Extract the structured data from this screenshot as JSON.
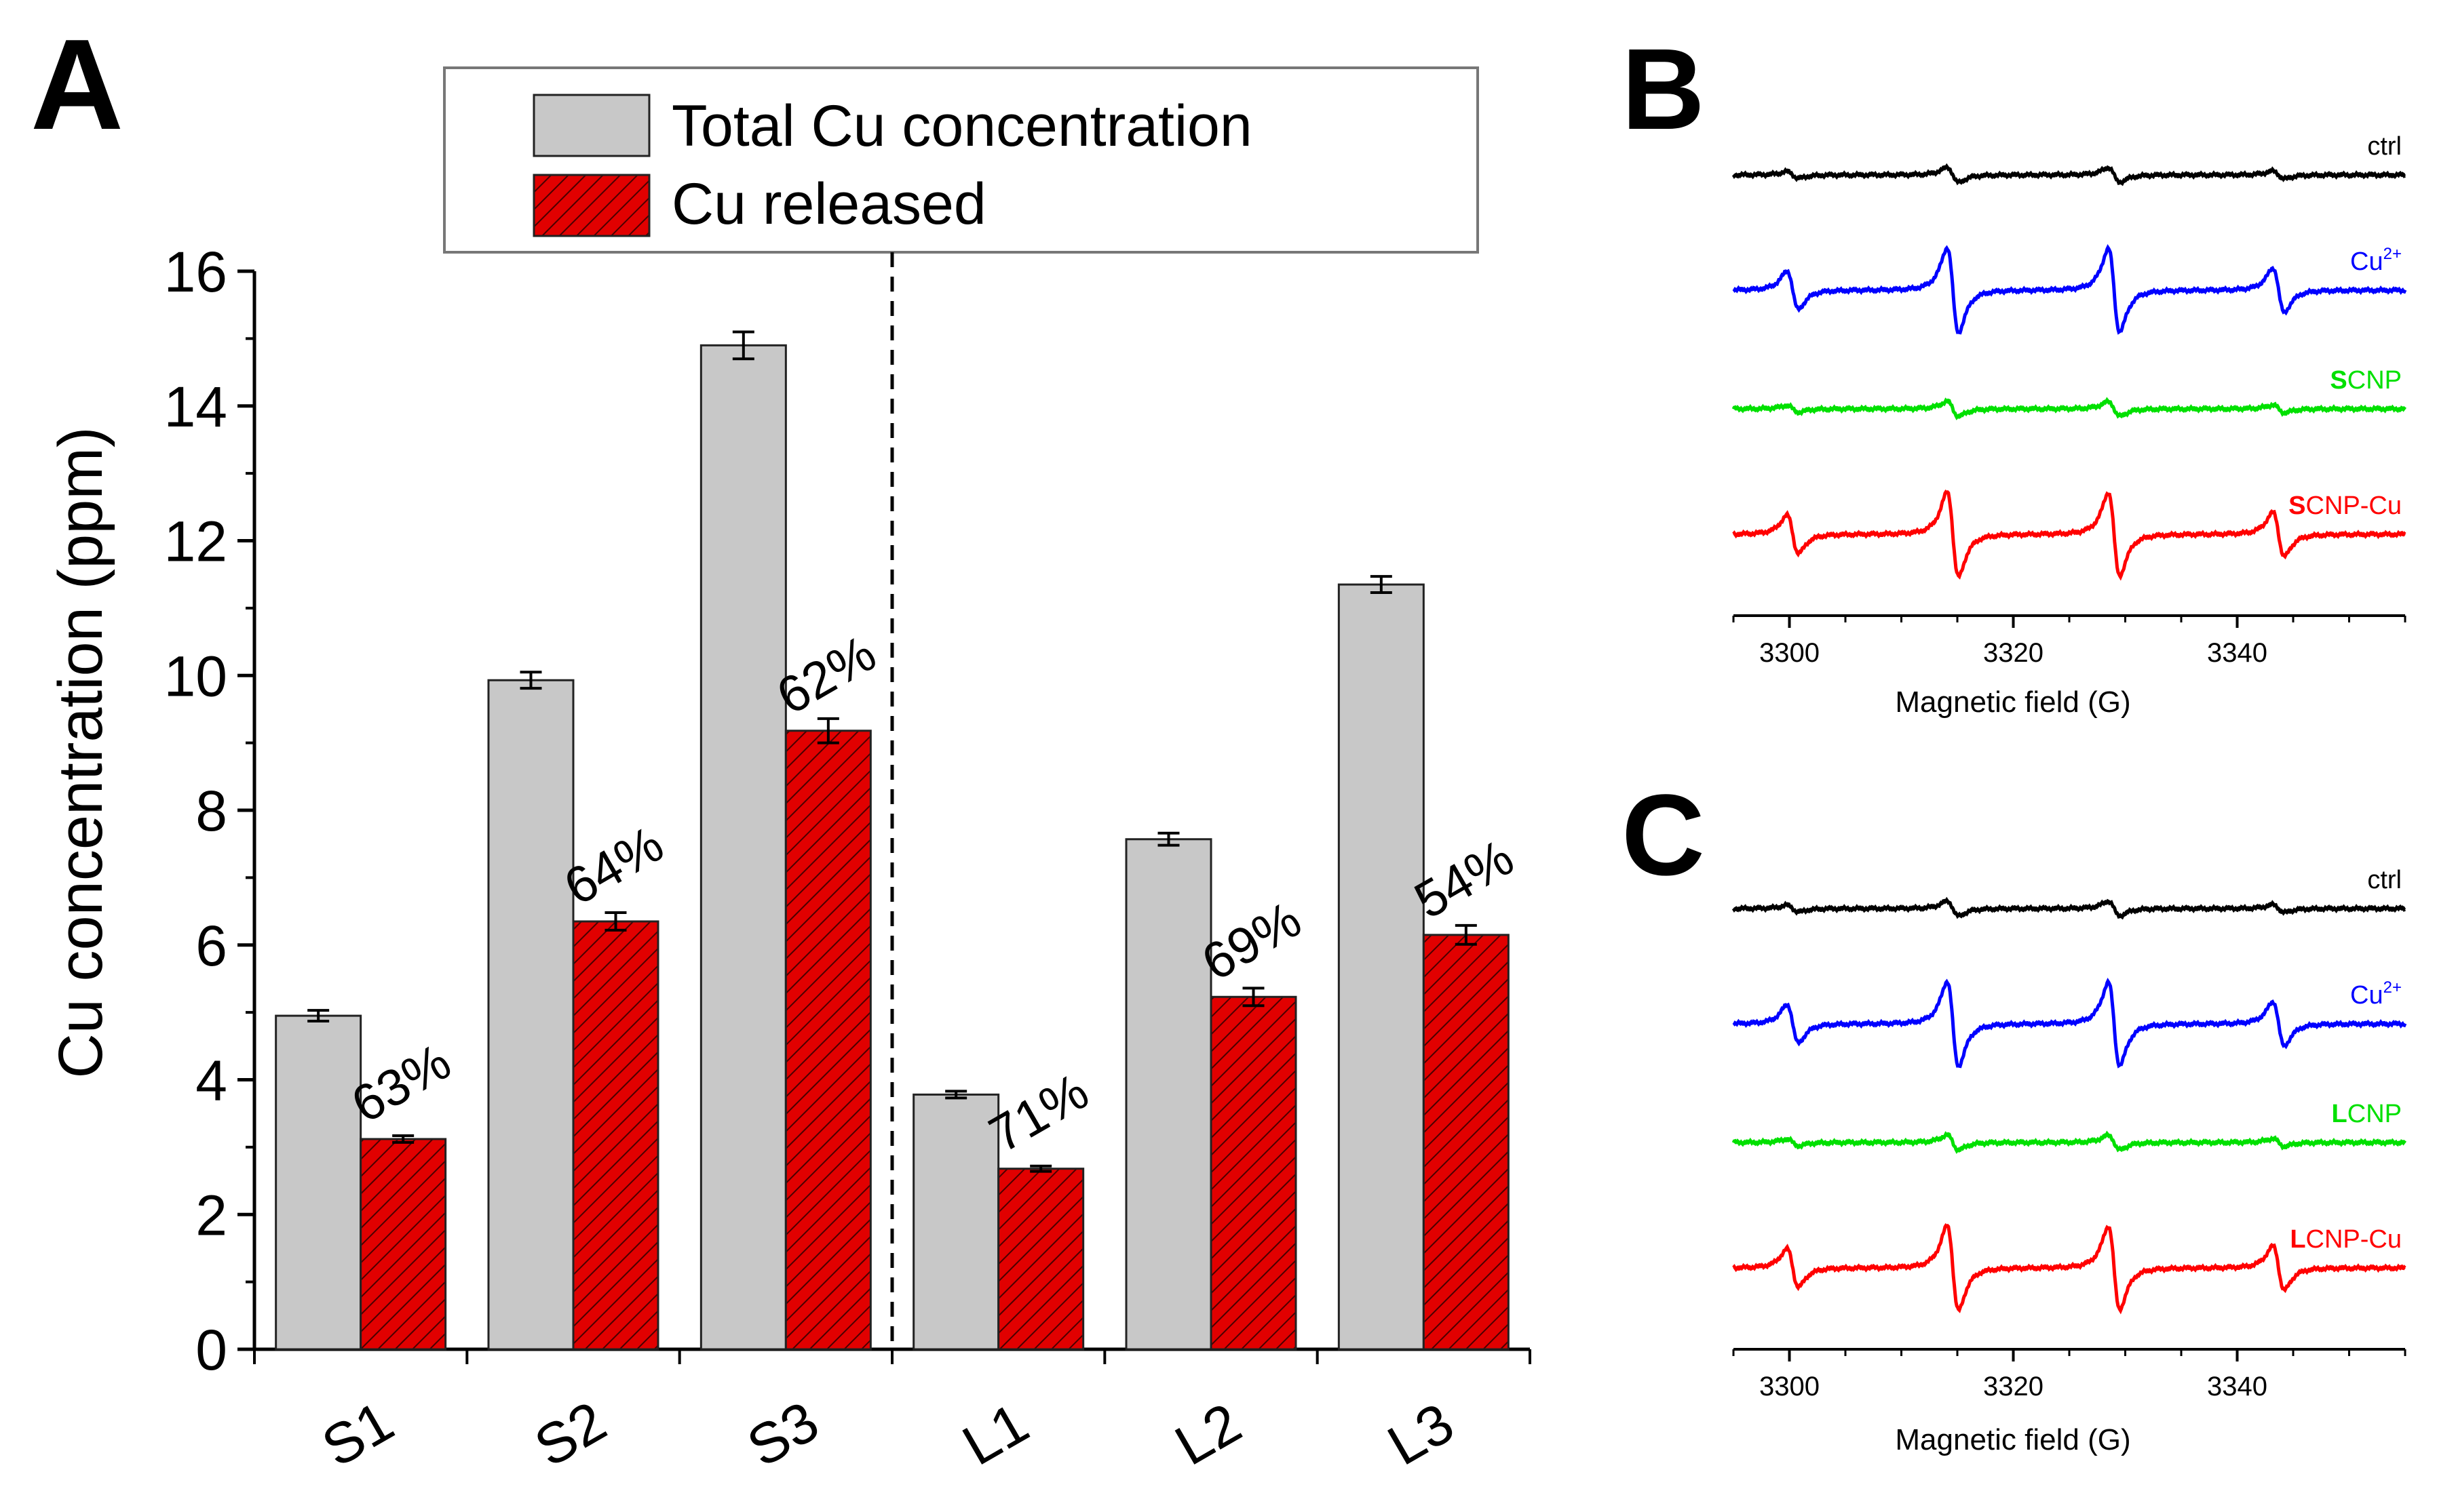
{
  "colors": {
    "total_fill": "#c8c8c8",
    "released_fill": "#e10000",
    "hatch": "#4a0000",
    "ctrl": "#000000",
    "cu2": "#0000ff",
    "np": "#00e000",
    "npcu": "#ff0000",
    "legend_border": "#777777"
  },
  "panels": {
    "A": {
      "label": "A"
    },
    "B": {
      "label": "B"
    },
    "C": {
      "label": "C"
    }
  },
  "chart_data": [
    {
      "id": "A",
      "type": "bar",
      "ylabel": "Cu concentration (ppm)",
      "xlabel": "",
      "ylim": [
        0,
        16
      ],
      "yticks": [
        "0",
        "2",
        "4",
        "6",
        "8",
        "10",
        "12",
        "14",
        "16"
      ],
      "categories": [
        "S1",
        "S2",
        "S3",
        "L1",
        "L2",
        "L3"
      ],
      "series": [
        {
          "name": "Total Cu concentration",
          "values": [
            4.95,
            9.93,
            14.9,
            3.78,
            7.57,
            11.35
          ],
          "errors": [
            0.08,
            0.12,
            0.2,
            0.05,
            0.09,
            0.12
          ]
        },
        {
          "name": "Cu released",
          "values": [
            3.12,
            6.35,
            9.18,
            2.68,
            5.23,
            6.15
          ],
          "errors": [
            0.05,
            0.13,
            0.18,
            0.04,
            0.13,
            0.14
          ]
        }
      ],
      "annotations": [
        "63%",
        "64%",
        "62%",
        "71%",
        "69%",
        "54%"
      ],
      "legend_position": "top-center",
      "divider_after_category": "S3"
    },
    {
      "id": "B",
      "type": "line",
      "title": "",
      "xlabel": "Magnetic field (G)",
      "ylabel": "",
      "xlim": [
        3295,
        3355
      ],
      "xticks": [
        "3300",
        "3320",
        "3340"
      ],
      "series": [
        {
          "name": "ctrl",
          "bold_prefix": "",
          "rest": "ctrl",
          "amplitude": 0.12
        },
        {
          "name": "Cu2+",
          "bold_prefix": "",
          "rest": "Cu",
          "sup": "2+",
          "amplitude": 1.0
        },
        {
          "name": "SCNP",
          "bold_prefix": "S",
          "rest": "CNP",
          "amplitude": 0.12
        },
        {
          "name": "SCNP-Cu",
          "bold_prefix": "S",
          "rest": "CNP-Cu",
          "amplitude": 0.9
        }
      ]
    },
    {
      "id": "C",
      "type": "line",
      "title": "",
      "xlabel": "Magnetic field (G)",
      "ylabel": "",
      "xlim": [
        3295,
        3355
      ],
      "xticks": [
        "3300",
        "3320",
        "3340"
      ],
      "series": [
        {
          "name": "ctrl",
          "bold_prefix": "",
          "rest": "ctrl",
          "amplitude": 0.12
        },
        {
          "name": "Cu2+",
          "bold_prefix": "",
          "rest": "Cu",
          "sup": "2+",
          "amplitude": 1.0
        },
        {
          "name": "LCNP",
          "bold_prefix": "L",
          "rest": "CNP",
          "amplitude": 0.12
        },
        {
          "name": "LCNP-Cu",
          "bold_prefix": "L",
          "rest": "CNP-Cu",
          "amplitude": 0.9
        }
      ]
    }
  ]
}
